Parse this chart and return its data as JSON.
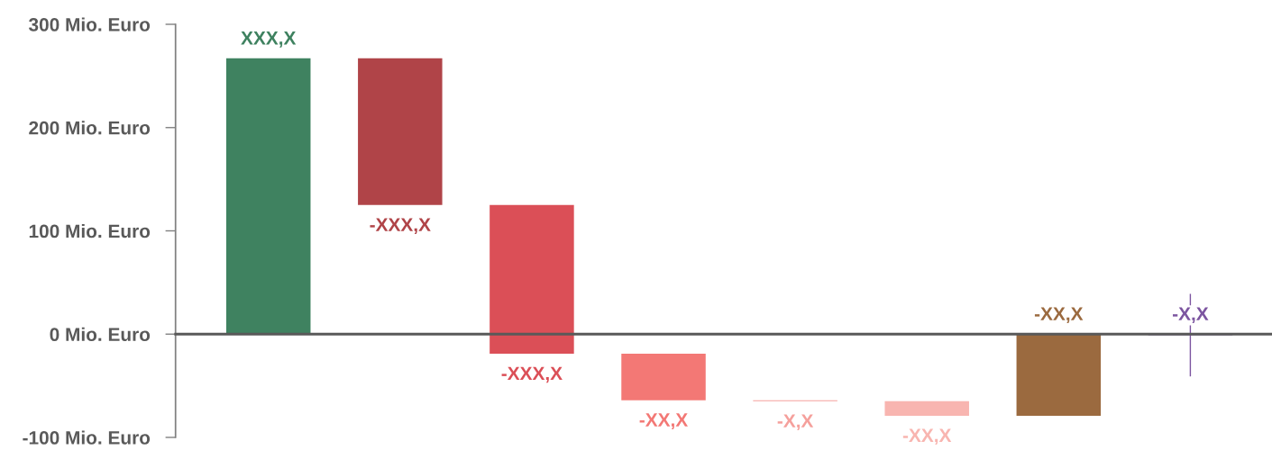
{
  "chart_data": {
    "type": "bar",
    "categories": [
      null,
      null,
      null,
      null,
      null,
      null,
      null,
      null
    ],
    "base": [
      0,
      267,
      125,
      -19,
      -64,
      -65,
      0,
      0
    ],
    "values": [
      267,
      -142,
      -144,
      -45,
      -1,
      -14,
      -79,
      -1
    ],
    "colors": [
      "#3f8260",
      "#b04448",
      "#db4f57",
      "#f37875",
      "#f5a09c",
      "#f8b5b0",
      "#9b6a3f",
      "#7c55a0"
    ],
    "errors": [
      null,
      null,
      null,
      null,
      null,
      null,
      null,
      [
        -40,
        40
      ]
    ],
    "value_labels": [
      "XXX,X",
      "-XXX,X",
      "-XXX,X",
      "-XX,X",
      "-X,X",
      "-XX,X",
      "-XX,X",
      "-X,X"
    ],
    "ylim": [
      -100,
      300
    ],
    "yticks": [
      {
        "value": -100,
        "label": "-100 Mio. Euro"
      },
      {
        "value": 0,
        "label": "0 Mio. Euro"
      },
      {
        "value": 100,
        "label": "100 Mio. Euro"
      },
      {
        "value": 200,
        "label": "200 Mio. Euro"
      },
      {
        "value": 300,
        "label": "300 Mio. Euro"
      }
    ],
    "legend": false
  }
}
